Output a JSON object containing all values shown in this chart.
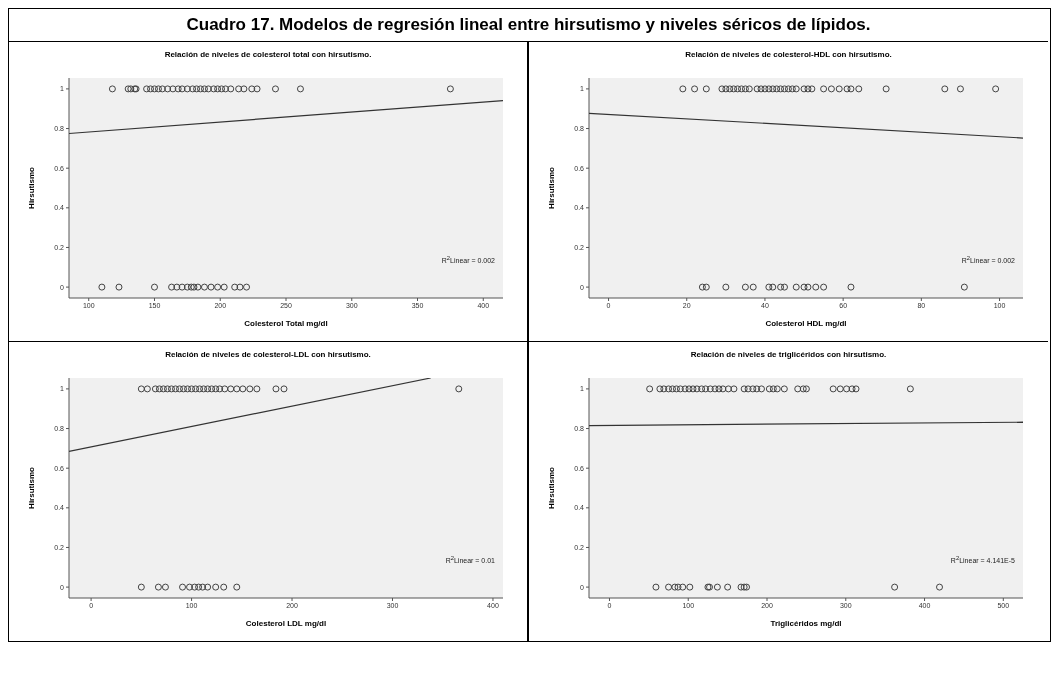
{
  "chart_data": [
    {
      "type": "other",
      "title": "Cuadro 17. Modelos de regresión lineal entre hirsutismo y niveles séricos de lípidos."
    },
    {
      "type": "scatter",
      "title": "Relación de niveles de colesterol total con hirsutismo.",
      "xlabel": "Colesterol Total mg/dl",
      "ylabel": "Hirsutismo",
      "xlim": [
        85,
        415
      ],
      "xticks": [
        100,
        150,
        200,
        250,
        300,
        350,
        400
      ],
      "ylim": [
        -0.055,
        1.055
      ],
      "yticks": [
        0,
        0.2,
        0.4,
        0.6,
        0.8,
        1
      ],
      "marker": "circle",
      "annotations": [
        "R$^{2}$Linear = 0.002"
      ],
      "series": [
        {
          "color": "#444444",
          "x": [
            118,
            130,
            132,
            135,
            136,
            144,
            147,
            150,
            153,
            156,
            160,
            164,
            168,
            171,
            175,
            179,
            182,
            185,
            188,
            191,
            195,
            198,
            201,
            204,
            208,
            214,
            218,
            224,
            228,
            242,
            261,
            375
          ],
          "values": [
            1,
            1,
            1,
            1,
            1,
            1,
            1,
            1,
            1,
            1,
            1,
            1,
            1,
            1,
            1,
            1,
            1,
            1,
            1,
            1,
            1,
            1,
            1,
            1,
            1,
            1,
            1,
            1,
            1,
            1,
            1,
            1
          ]
        },
        {
          "color": "#444444",
          "x": [
            110,
            123,
            150,
            163,
            167,
            171,
            175,
            178,
            180,
            183,
            188,
            193,
            198,
            203,
            211,
            215,
            220
          ],
          "values": [
            0,
            0,
            0,
            0,
            0,
            0,
            0,
            0,
            0,
            0,
            0,
            0,
            0,
            0,
            0,
            0,
            0
          ]
        },
        {
          "type": "line",
          "marker": "none",
          "color": "#333333",
          "x": [
            85,
            415
          ],
          "values": [
            0.775,
            0.941
          ]
        }
      ]
    },
    {
      "type": "scatter",
      "title": "Relación de niveles de colesterol-HDL con hirsutismo.",
      "xlabel": "Colesterol HDL mg/dl",
      "ylabel": "Hirsutismo",
      "xlim": [
        -5,
        106
      ],
      "xticks": [
        0,
        20,
        40,
        60,
        80,
        100
      ],
      "ylim": [
        -0.055,
        1.055
      ],
      "yticks": [
        0,
        0.2,
        0.4,
        0.6,
        0.8,
        1
      ],
      "marker": "circle",
      "annotations": [
        "R$^{2}$Linear = 0.002"
      ],
      "series": [
        {
          "color": "#444444",
          "x": [
            19,
            22,
            25,
            29,
            30,
            31,
            32,
            33,
            34,
            35,
            36,
            38,
            39,
            40,
            41,
            42,
            43,
            44,
            45,
            46,
            47,
            48,
            50,
            51,
            52,
            55,
            57,
            59,
            61,
            62,
            64,
            71,
            86,
            90,
            99
          ],
          "values": [
            1,
            1,
            1,
            1,
            1,
            1,
            1,
            1,
            1,
            1,
            1,
            1,
            1,
            1,
            1,
            1,
            1,
            1,
            1,
            1,
            1,
            1,
            1,
            1,
            1,
            1,
            1,
            1,
            1,
            1,
            1,
            1,
            1,
            1,
            1
          ]
        },
        {
          "color": "#444444",
          "x": [
            24,
            25,
            30,
            35,
            37,
            41,
            42,
            44,
            45,
            48,
            50,
            51,
            53,
            55,
            62,
            91
          ],
          "values": [
            0,
            0,
            0,
            0,
            0,
            0,
            0,
            0,
            0,
            0,
            0,
            0,
            0,
            0,
            0,
            0
          ]
        },
        {
          "type": "line",
          "marker": "none",
          "color": "#333333",
          "x": [
            -5,
            106
          ],
          "values": [
            0.877,
            0.752
          ]
        }
      ]
    },
    {
      "type": "scatter",
      "title": "Relación de niveles de colesterol-LDL con hirsutismo.",
      "xlabel": "Colesterol LDL mg/dl",
      "ylabel": "Hirsutismo",
      "xlim": [
        -22,
        410
      ],
      "xticks": [
        0,
        100,
        200,
        300,
        400
      ],
      "ylim": [
        -0.055,
        1.055
      ],
      "yticks": [
        0,
        0.2,
        0.4,
        0.6,
        0.8,
        1
      ],
      "marker": "circle",
      "annotations": [
        "R$^{2}$Linear = 0.01"
      ],
      "series": [
        {
          "color": "#444444",
          "x": [
            50,
            56,
            64,
            68,
            72,
            76,
            80,
            84,
            88,
            92,
            96,
            100,
            104,
            108,
            112,
            116,
            120,
            124,
            128,
            133,
            139,
            145,
            151,
            158,
            165,
            184,
            192,
            366
          ],
          "values": [
            1,
            1,
            1,
            1,
            1,
            1,
            1,
            1,
            1,
            1,
            1,
            1,
            1,
            1,
            1,
            1,
            1,
            1,
            1,
            1,
            1,
            1,
            1,
            1,
            1,
            1,
            1,
            1
          ]
        },
        {
          "color": "#444444",
          "x": [
            50,
            67,
            74,
            91,
            98,
            103,
            107,
            111,
            116,
            124,
            132,
            145
          ],
          "values": [
            0,
            0,
            0,
            0,
            0,
            0,
            0,
            0,
            0,
            0,
            0,
            0
          ]
        },
        {
          "type": "line",
          "marker": "none",
          "color": "#333333",
          "x": [
            -22,
            338
          ],
          "values": [
            0.685,
            1.055
          ]
        }
      ]
    },
    {
      "type": "scatter",
      "title": "Relación de niveles de triglicéridos con hirsutismo.",
      "xlabel": "Triglicéridos mg/dl",
      "ylabel": "Hirsutismo",
      "xlim": [
        -26,
        525
      ],
      "xticks": [
        0,
        100,
        200,
        300,
        400,
        500
      ],
      "ylim": [
        -0.055,
        1.055
      ],
      "yticks": [
        0,
        0.2,
        0.4,
        0.6,
        0.8,
        1
      ],
      "marker": "circle",
      "annotations": [
        "R$^{2}$Linear = 4.141E-5"
      ],
      "series": [
        {
          "color": "#444444",
          "x": [
            51,
            64,
            69,
            75,
            80,
            85,
            90,
            96,
            101,
            106,
            111,
            117,
            122,
            128,
            134,
            139,
            144,
            151,
            158,
            171,
            176,
            182,
            187,
            193,
            203,
            208,
            213,
            222,
            239,
            246,
            250,
            284,
            293,
            301,
            308,
            313,
            382
          ],
          "values": [
            1,
            1,
            1,
            1,
            1,
            1,
            1,
            1,
            1,
            1,
            1,
            1,
            1,
            1,
            1,
            1,
            1,
            1,
            1,
            1,
            1,
            1,
            1,
            1,
            1,
            1,
            1,
            1,
            1,
            1,
            1,
            1,
            1,
            1,
            1,
            1,
            1
          ]
        },
        {
          "color": "#444444",
          "x": [
            59,
            75,
            83,
            87,
            93,
            102,
            125,
            127,
            137,
            150,
            167,
            171,
            174,
            362,
            419
          ],
          "values": [
            0,
            0,
            0,
            0,
            0,
            0,
            0,
            0,
            0,
            0,
            0,
            0,
            0,
            0,
            0
          ]
        },
        {
          "type": "line",
          "marker": "none",
          "color": "#333333",
          "x": [
            -26,
            525
          ],
          "values": [
            0.815,
            0.832
          ]
        }
      ]
    }
  ]
}
